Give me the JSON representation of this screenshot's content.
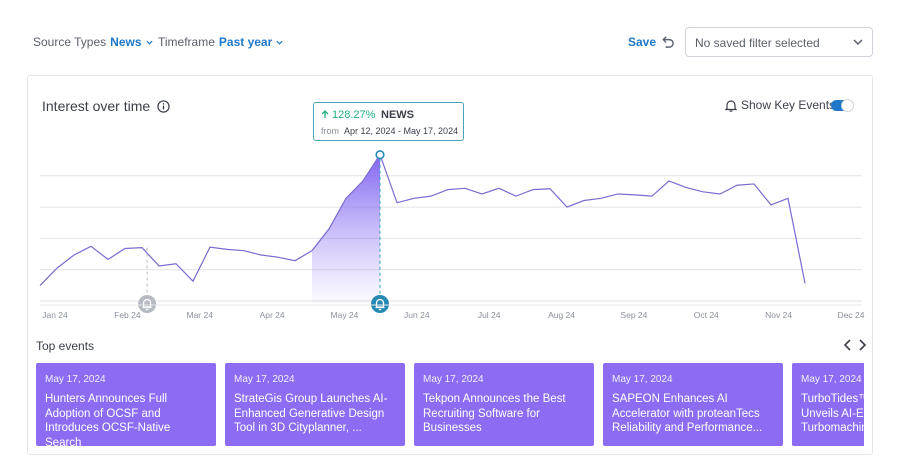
{
  "filters": {
    "source_label": "Source Types",
    "source_value": "News",
    "timeframe_label": "Timeframe",
    "timeframe_value": "Past year"
  },
  "toolbar": {
    "save_label": "Save",
    "saved_filter_value": "No saved filter selected"
  },
  "card": {
    "title": "Interest over time",
    "key_events_label": "Show Key Events",
    "key_events_on": true
  },
  "tooltip": {
    "change": "128.27%",
    "source": "NEWS",
    "from_label": "from",
    "range": "Apr 12, 2024 - May 17, 2024"
  },
  "chart_data": {
    "type": "line",
    "x_ticks": [
      "Jan 24",
      "Feb 24",
      "Mar 24",
      "Apr 24",
      "May 24",
      "Jun 24",
      "Jul 24",
      "Aug 24",
      "Sep 24",
      "Oct 24",
      "Nov 24",
      "Dec 24"
    ],
    "values": [
      4,
      8,
      11,
      13,
      10,
      12.5,
      12.7,
      8.5,
      9,
      5,
      12.8,
      12.3,
      12,
      11,
      10.5,
      9.7,
      12,
      17,
      24,
      28,
      34,
      23,
      24,
      24.5,
      26,
      26.3,
      25,
      26.3,
      24.5,
      26,
      26.2,
      22,
      23.5,
      24,
      25,
      24.8,
      24.5,
      28,
      26.5,
      25.5,
      25,
      27,
      27.3,
      22.5,
      24,
      4.5
    ],
    "highlight_range": [
      16,
      20
    ],
    "peak_index": 20,
    "key_events_at": [
      6.3,
      20
    ],
    "ylim": [
      0,
      36
    ],
    "grid": true,
    "legend": "none"
  },
  "events": {
    "title": "Top events",
    "items": [
      {
        "date": "May 17, 2024",
        "headline": "Hunters Announces Full Adoption of OCSF and Introduces OCSF-Native Search"
      },
      {
        "date": "May 17, 2024",
        "headline": "StrateGis Group Launches AI-Enhanced Generative Design Tool in 3D Cityplanner, ..."
      },
      {
        "date": "May 17, 2024",
        "headline": "Tekpon Announces the Best Recruiting Software for Businesses"
      },
      {
        "date": "May 17, 2024",
        "headline": "SAPEON Enhances AI Accelerator with proteanTecs Reliability and Performance..."
      },
      {
        "date": "May 17, 2024",
        "headline": "TurboTides™ Unveils AI-En Turbomachin"
      }
    ]
  },
  "colors": {
    "accent": "#1f78c9",
    "line": "#7a6bd0",
    "event_card": "#8b6cf2",
    "positive": "#22b07d"
  },
  "icons": [
    "chevron-down-icon",
    "undo-icon",
    "info-icon",
    "bell-icon",
    "arrow-up-icon",
    "chevron-left-icon",
    "chevron-right-icon"
  ]
}
